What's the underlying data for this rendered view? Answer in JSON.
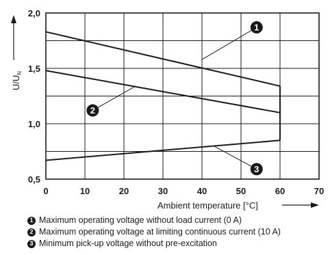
{
  "chart_data": {
    "type": "line",
    "xlabel": "Ambient temperature [°C]",
    "ylabel_main": "U/U",
    "ylabel_sub": "N",
    "xlim": [
      0,
      70
    ],
    "ylim": [
      0.5,
      2.0
    ],
    "x_ticks": [
      0,
      10,
      20,
      30,
      40,
      50,
      60,
      70
    ],
    "x_tick_labels": [
      "0",
      "10",
      "20",
      "30",
      "40",
      "50",
      "60",
      "70"
    ],
    "y_ticks": [
      0.5,
      1.0,
      1.5,
      2.0
    ],
    "y_tick_labels": [
      "0,5",
      "1,0",
      "1,5",
      "2,0"
    ],
    "y_grid": [
      0.5,
      0.75,
      1.0,
      1.25,
      1.5,
      1.75,
      2.0
    ],
    "grid": true,
    "series": [
      {
        "marker": "1",
        "x": [
          0,
          60
        ],
        "y": [
          1.83,
          1.34
        ]
      },
      {
        "marker": "2",
        "x": [
          0,
          60
        ],
        "y": [
          1.48,
          1.1
        ]
      },
      {
        "marker": "3",
        "x": [
          0,
          60
        ],
        "y": [
          0.67,
          0.85
        ]
      }
    ],
    "closing_line": {
      "x": 60,
      "y": [
        0.85,
        1.34
      ]
    },
    "annotations": [
      {
        "marker": "1",
        "at": {
          "x": 40,
          "y": 1.58
        },
        "label": {
          "x": 54,
          "y": 1.87
        }
      },
      {
        "marker": "2",
        "at": {
          "x": 23,
          "y": 1.34
        },
        "label": {
          "x": 12,
          "y": 1.12
        }
      },
      {
        "marker": "3",
        "at": {
          "x": 43,
          "y": 0.8
        },
        "label": {
          "x": 54,
          "y": 0.59
        }
      }
    ],
    "legend": [
      {
        "marker": "1",
        "text": "Maximum operating voltage without load current (0 A)"
      },
      {
        "marker": "2",
        "text": "Maximum operating voltage at limiting continuous current (10 A)"
      },
      {
        "marker": "3",
        "text": "Minimum pick-up voltage without pre-excitation"
      }
    ],
    "colors": {
      "line": "#1a1a1a",
      "grid": "#1a1a1a",
      "marker_fill": "#1a1a1a"
    }
  }
}
